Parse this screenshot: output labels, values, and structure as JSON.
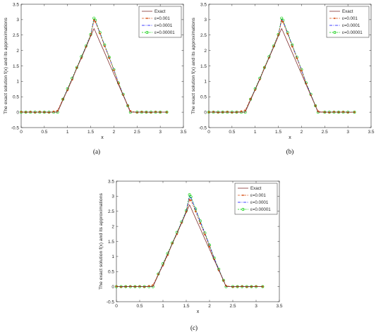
{
  "figure": {
    "captions": [
      "(a)",
      "(b)",
      "(c)"
    ]
  },
  "chart_data": [
    {
      "type": "line",
      "panel": "(a)",
      "xlabel": "x",
      "ylabel": "The exact solution f(x) and its approximations",
      "xlim": [
        0,
        3.5
      ],
      "ylim": [
        -0.5,
        3.5
      ],
      "xticks": [
        0,
        0.5,
        1,
        1.5,
        2,
        2.5,
        3,
        3.5
      ],
      "yticks": [
        -0.5,
        0,
        0.5,
        1,
        1.5,
        2,
        2.5,
        3,
        3.5
      ],
      "grid": false,
      "legend_position": "top-right",
      "x": [
        0,
        0.1,
        0.2,
        0.3,
        0.4,
        0.5,
        0.6,
        0.7,
        0.785,
        0.9,
        1.0,
        1.1,
        1.2,
        1.3,
        1.4,
        1.5,
        1.571,
        1.6,
        1.7,
        1.8,
        1.9,
        2.0,
        2.1,
        2.2,
        2.3,
        2.356,
        2.5,
        2.6,
        2.7,
        2.8,
        2.9,
        3.0,
        3.1416
      ],
      "series": [
        {
          "name": "Exact",
          "color": "#7f2f2f",
          "values": [
            0,
            0,
            0,
            0,
            0,
            0,
            0,
            0,
            0,
            0.39,
            0.73,
            1.07,
            1.42,
            1.77,
            2.11,
            2.47,
            2.71,
            2.62,
            2.27,
            1.93,
            1.58,
            1.24,
            0.89,
            0.55,
            0.2,
            0,
            0,
            0,
            0,
            0,
            0,
            0,
            0
          ]
        },
        {
          "name": "ε=0.001",
          "color": "#d95319",
          "values": [
            0.01,
            0.0,
            0.01,
            -0.01,
            0.01,
            0.0,
            -0.01,
            0.02,
            0.05,
            0.42,
            0.71,
            1.05,
            1.44,
            1.75,
            2.12,
            2.49,
            2.98,
            2.93,
            2.55,
            2.14,
            1.76,
            1.36,
            0.93,
            0.56,
            0.22,
            0.04,
            -0.01,
            0.01,
            0.0,
            -0.01,
            0.01,
            0.0,
            0.0
          ]
        },
        {
          "name": "ε=0.0001",
          "color": "#0000ff",
          "values": [
            0,
            0,
            0,
            0,
            0,
            0,
            0,
            0,
            0,
            0.41,
            0.74,
            1.08,
            1.43,
            1.78,
            2.13,
            2.5,
            3.0,
            2.95,
            2.56,
            2.16,
            1.77,
            1.37,
            0.94,
            0.57,
            0.21,
            0,
            0,
            0,
            0,
            0,
            0,
            0,
            0
          ]
        },
        {
          "name": "ε=0.00001",
          "color": "#00cc00",
          "values": [
            0,
            0,
            0,
            0,
            0,
            0,
            0,
            0,
            0,
            0.42,
            0.76,
            1.1,
            1.45,
            1.8,
            2.15,
            2.52,
            3.05,
            2.98,
            2.58,
            2.18,
            1.78,
            1.38,
            0.95,
            0.58,
            0.21,
            0,
            0,
            0,
            0,
            0,
            0,
            0,
            0
          ]
        }
      ]
    },
    {
      "type": "line",
      "panel": "(b)",
      "xlabel": "x",
      "ylabel": "The exact solution f(x) and its approximations",
      "xlim": [
        0,
        3.5
      ],
      "ylim": [
        -0.5,
        3.5
      ],
      "xticks": [
        0,
        0.5,
        1,
        1.5,
        2,
        2.5,
        3,
        3.5
      ],
      "yticks": [
        -0.5,
        0,
        0.5,
        1,
        1.5,
        2,
        2.5,
        3,
        3.5
      ],
      "grid": false,
      "legend_position": "top-right",
      "x": [
        0,
        0.1,
        0.2,
        0.3,
        0.4,
        0.5,
        0.6,
        0.7,
        0.785,
        0.9,
        1.0,
        1.1,
        1.2,
        1.3,
        1.4,
        1.5,
        1.571,
        1.6,
        1.7,
        1.8,
        1.9,
        2.0,
        2.1,
        2.2,
        2.3,
        2.356,
        2.5,
        2.6,
        2.7,
        2.8,
        2.9,
        3.0,
        3.1416
      ],
      "series": [
        {
          "name": "Exact",
          "color": "#7f2f2f",
          "values": [
            0,
            0,
            0,
            0,
            0,
            0,
            0,
            0,
            0,
            0.39,
            0.73,
            1.07,
            1.42,
            1.77,
            2.11,
            2.47,
            2.71,
            2.62,
            2.27,
            1.93,
            1.58,
            1.24,
            0.89,
            0.55,
            0.2,
            0,
            0,
            0,
            0,
            0,
            0,
            0,
            0
          ]
        },
        {
          "name": "ε=0.001",
          "color": "#d95319",
          "values": [
            0.0,
            0.01,
            -0.01,
            0.0,
            0.01,
            -0.01,
            0.0,
            0.03,
            0.06,
            0.43,
            0.72,
            1.06,
            1.45,
            1.76,
            2.13,
            2.5,
            2.96,
            2.92,
            2.54,
            2.13,
            1.75,
            1.35,
            0.92,
            0.55,
            0.21,
            0.03,
            0.0,
            -0.01,
            0.01,
            0.0,
            0.01,
            -0.01,
            0.0
          ]
        },
        {
          "name": "ε=0.0001",
          "color": "#0000ff",
          "values": [
            0,
            0,
            0,
            0,
            0,
            0,
            0,
            0,
            0,
            0.41,
            0.74,
            1.08,
            1.43,
            1.78,
            2.13,
            2.5,
            3.0,
            2.95,
            2.56,
            2.16,
            1.77,
            1.37,
            0.94,
            0.57,
            0.21,
            0,
            0,
            0,
            0,
            0,
            0,
            0,
            0
          ]
        },
        {
          "name": "ε=0.00001",
          "color": "#00cc00",
          "values": [
            0,
            0,
            0,
            0,
            0,
            0,
            0,
            0,
            0,
            0.42,
            0.76,
            1.1,
            1.45,
            1.8,
            2.15,
            2.52,
            3.05,
            2.98,
            2.58,
            2.18,
            1.78,
            1.38,
            0.95,
            0.58,
            0.21,
            0,
            0,
            0,
            0,
            0,
            0,
            0,
            0
          ]
        }
      ]
    },
    {
      "type": "line",
      "panel": "(c)",
      "xlabel": "x",
      "ylabel": "The exact solution f(x) and its approximations",
      "xlim": [
        0,
        3.5
      ],
      "ylim": [
        -0.5,
        3.5
      ],
      "xticks": [
        0,
        0.5,
        1,
        1.5,
        2,
        2.5,
        3,
        3.5
      ],
      "yticks": [
        -0.5,
        0,
        0.5,
        1,
        1.5,
        2,
        2.5,
        3,
        3.5
      ],
      "grid": false,
      "legend_position": "top-right",
      "x": [
        0,
        0.1,
        0.2,
        0.3,
        0.4,
        0.5,
        0.6,
        0.7,
        0.785,
        0.9,
        1.0,
        1.1,
        1.2,
        1.3,
        1.4,
        1.5,
        1.571,
        1.6,
        1.7,
        1.8,
        1.9,
        2.0,
        2.1,
        2.2,
        2.3,
        2.356,
        2.5,
        2.6,
        2.7,
        2.8,
        2.9,
        3.0,
        3.1416
      ],
      "series": [
        {
          "name": "Exact",
          "color": "#7f2f2f",
          "values": [
            0,
            0,
            0,
            0,
            0,
            0,
            0,
            0,
            0,
            0.39,
            0.73,
            1.07,
            1.42,
            1.77,
            2.11,
            2.47,
            2.71,
            2.62,
            2.27,
            1.93,
            1.58,
            1.24,
            0.89,
            0.55,
            0.2,
            0,
            0,
            0,
            0,
            0,
            0,
            0,
            0
          ]
        },
        {
          "name": "ε=0.001",
          "color": "#d95319",
          "values": [
            0.01,
            -0.01,
            0.0,
            0.01,
            0.0,
            0.01,
            -0.01,
            0.02,
            0.05,
            0.41,
            0.7,
            1.04,
            1.43,
            1.74,
            2.11,
            2.48,
            2.88,
            2.86,
            2.5,
            2.1,
            1.73,
            1.33,
            0.91,
            0.54,
            0.2,
            0.03,
            -0.01,
            0.0,
            0.01,
            -0.01,
            0.0,
            0.01,
            0.0
          ]
        },
        {
          "name": "ε=0.0001",
          "color": "#0000ff",
          "values": [
            0,
            0,
            0,
            0,
            0,
            0,
            0,
            0,
            0,
            0.41,
            0.74,
            1.08,
            1.43,
            1.78,
            2.13,
            2.5,
            3.0,
            2.95,
            2.56,
            2.16,
            1.77,
            1.37,
            0.94,
            0.57,
            0.21,
            0,
            0,
            0,
            0,
            0,
            0,
            0,
            0
          ]
        },
        {
          "name": "ε=0.00001",
          "color": "#00cc00",
          "values": [
            0,
            0,
            0,
            0,
            0,
            0,
            0,
            0,
            0,
            0.42,
            0.76,
            1.1,
            1.45,
            1.8,
            2.15,
            2.52,
            3.05,
            2.98,
            2.58,
            2.18,
            1.78,
            1.38,
            0.95,
            0.58,
            0.21,
            0,
            0,
            0,
            0,
            0,
            0,
            0,
            0
          ]
        }
      ]
    }
  ]
}
